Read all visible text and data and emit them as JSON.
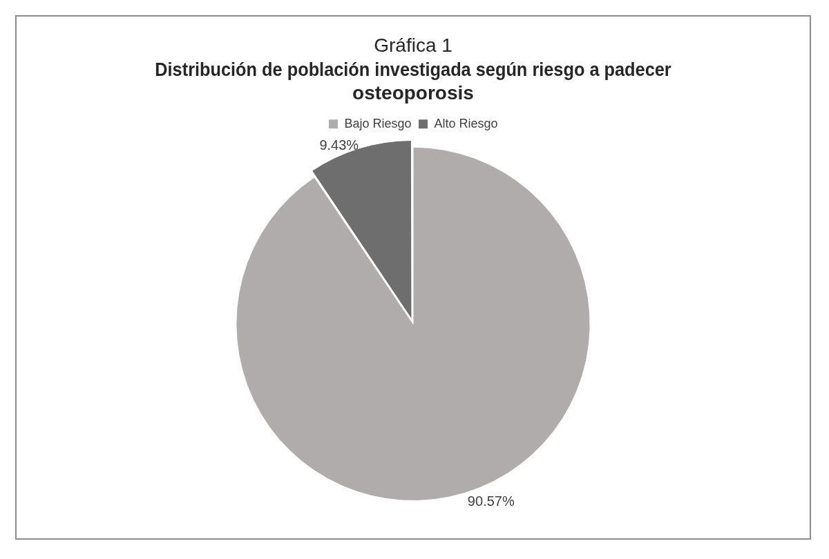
{
  "chart_data": {
    "type": "pie",
    "title": "Gráfica 1",
    "subtitle": "Distribución de población investigada según riesgo a padecer osteoporosis",
    "categories": [
      "Bajo Riesgo",
      "Alto Riesgo"
    ],
    "values": [
      90.57,
      9.43
    ],
    "colors": [
      "#b0acac",
      "#6e6e6e"
    ],
    "value_labels": [
      "90.57%",
      "9.43%"
    ],
    "legend": "top"
  }
}
